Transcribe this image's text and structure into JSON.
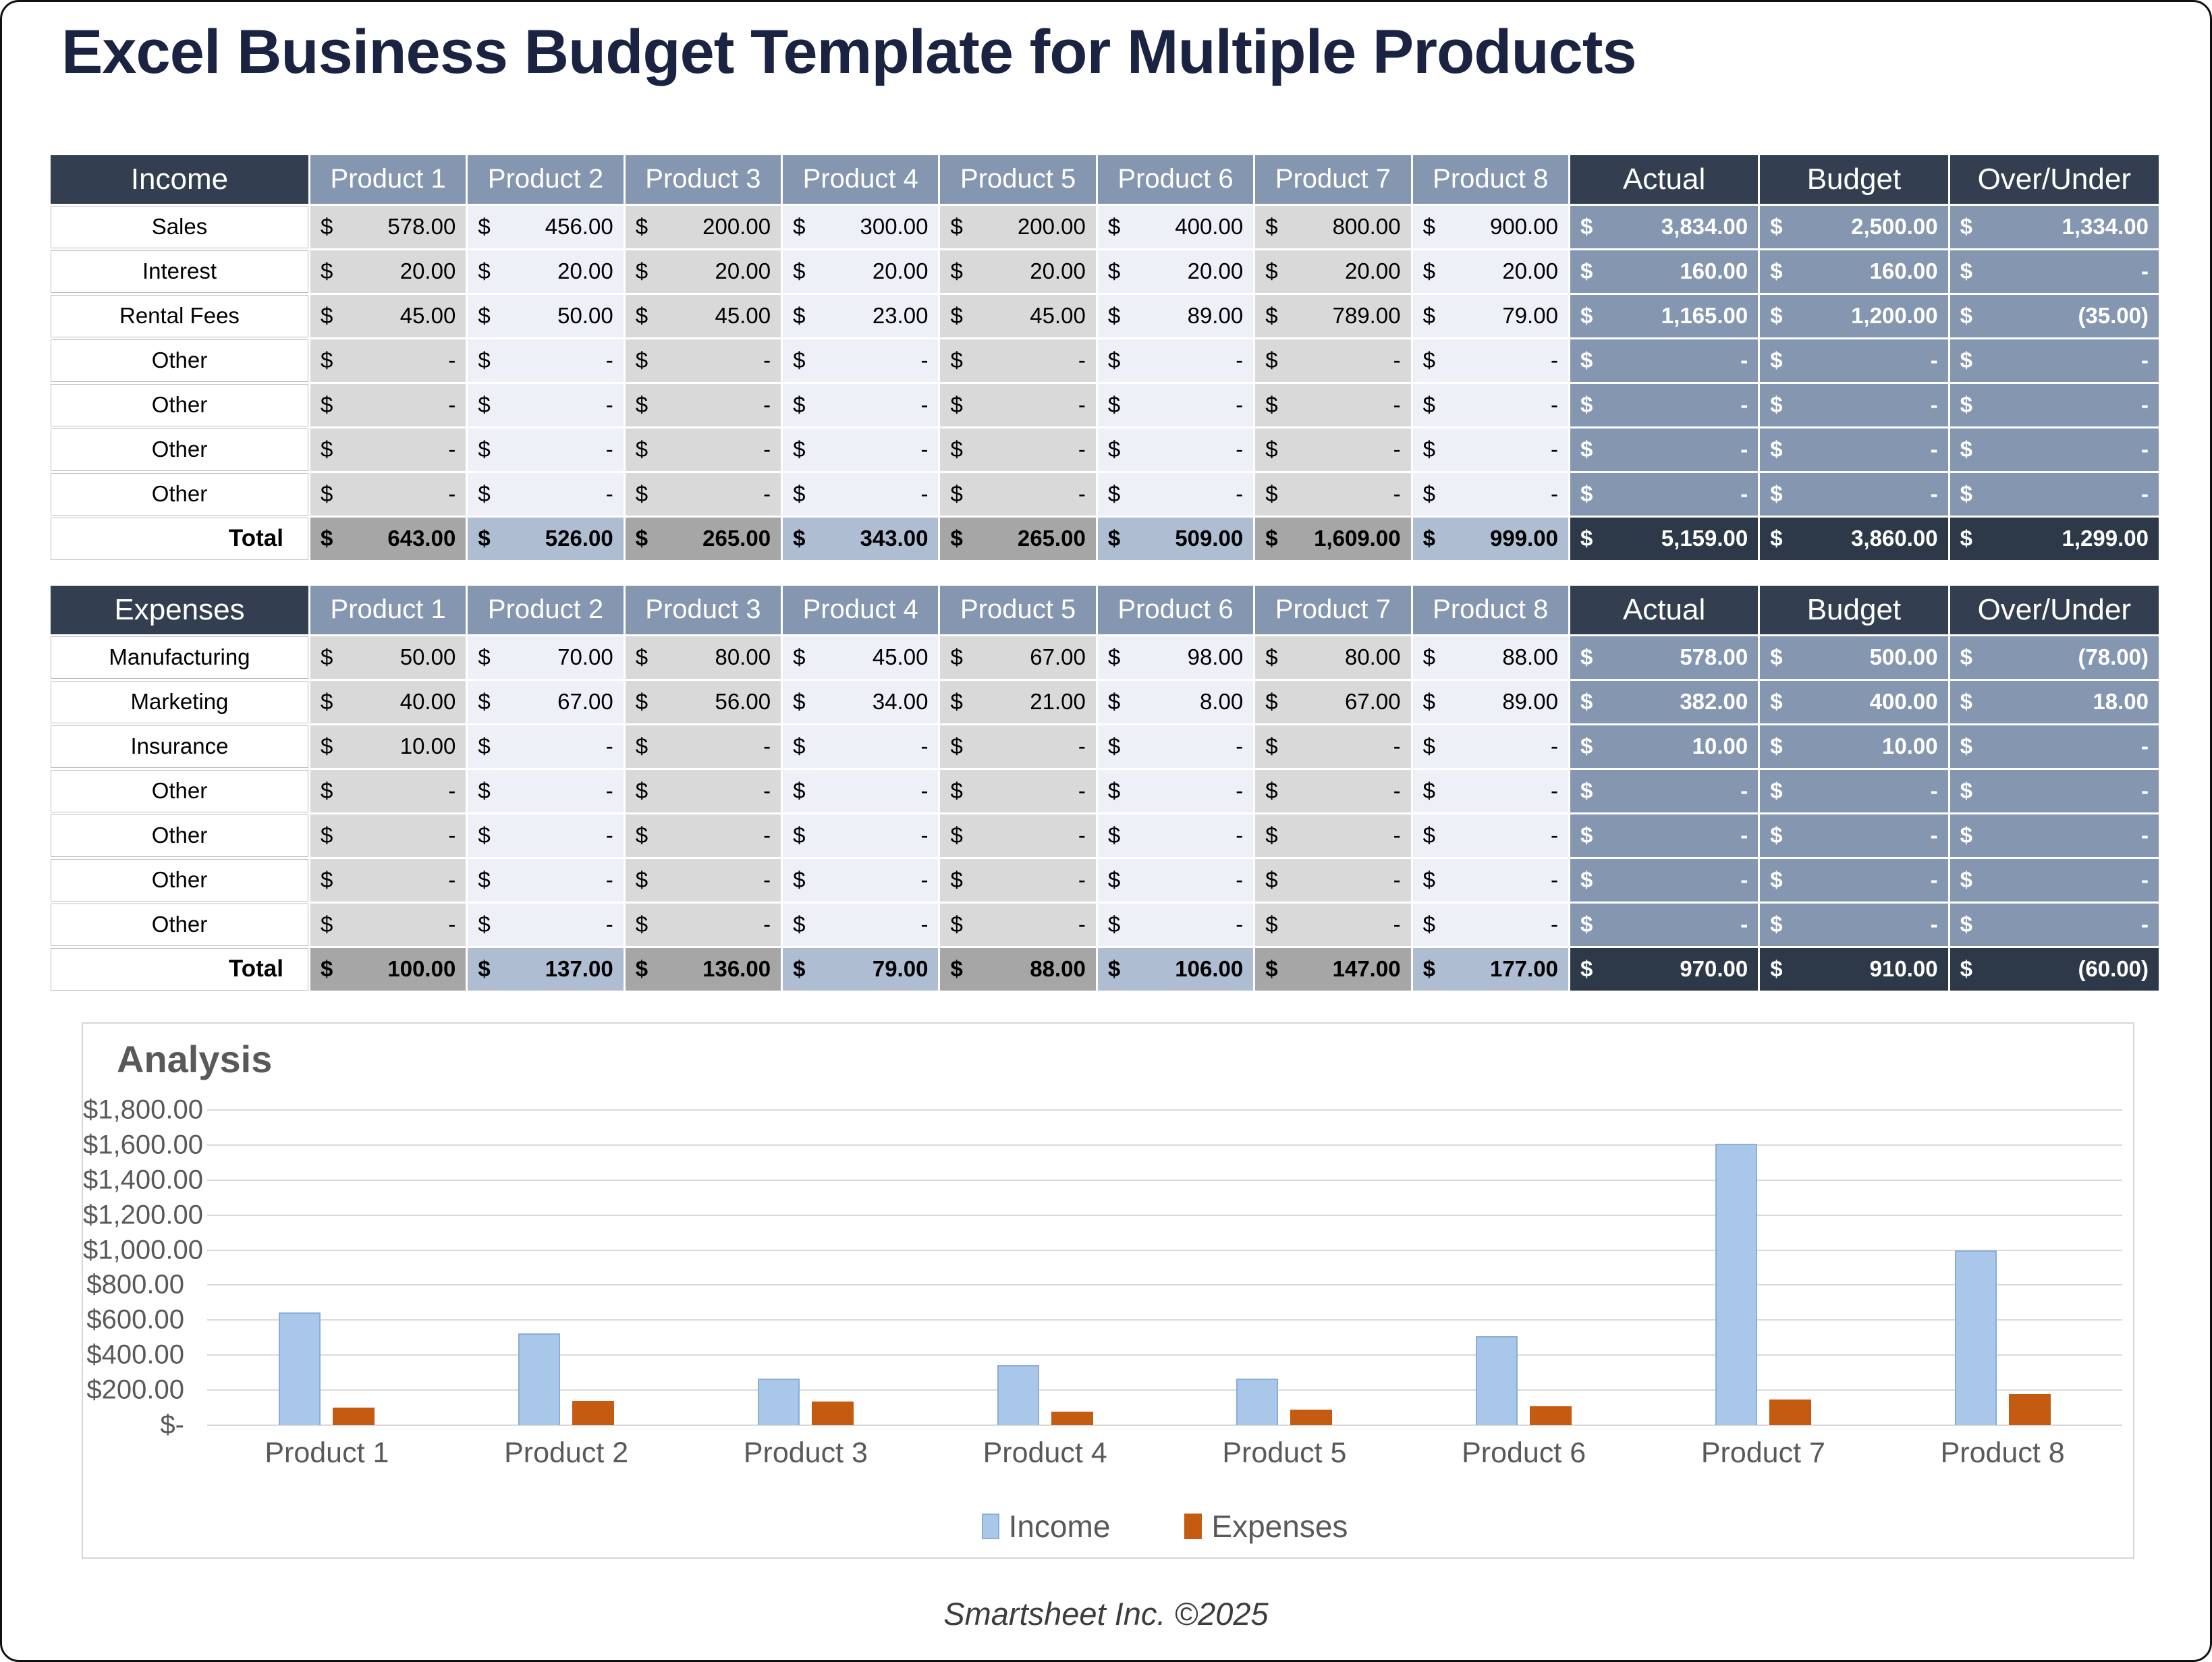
{
  "title": "Excel Business Budget Template for Multiple Products",
  "footer": "Smartsheet Inc. ©2025",
  "colors": {
    "title_navy": "#1b2342",
    "header_dark": "#333f50",
    "header_blue": "#8496b0",
    "cell_gray": "#d9d9d9",
    "cell_light": "#edf0f7",
    "total_gray": "#a6a6a6",
    "total_blue": "#afbdd3",
    "total_dark": "#2d3949",
    "income_bar": "#a9c7e9",
    "income_bar_border": "#8cacd9",
    "expenses_bar": "#c55a11"
  },
  "tables": [
    {
      "id": "income",
      "name": "Income",
      "product_headers": [
        "Product 1",
        "Product 2",
        "Product 3",
        "Product 4",
        "Product 5",
        "Product 6",
        "Product 7",
        "Product 8"
      ],
      "summary_headers": [
        "Actual",
        "Budget",
        "Over/Under"
      ],
      "rows": [
        {
          "label": "Sales",
          "values": [
            "578.00",
            "456.00",
            "200.00",
            "300.00",
            "200.00",
            "400.00",
            "800.00",
            "900.00"
          ],
          "actual": "3,834.00",
          "budget": "2,500.00",
          "over_under": "1,334.00"
        },
        {
          "label": "Interest",
          "values": [
            "20.00",
            "20.00",
            "20.00",
            "20.00",
            "20.00",
            "20.00",
            "20.00",
            "20.00"
          ],
          "actual": "160.00",
          "budget": "160.00",
          "over_under": "-"
        },
        {
          "label": "Rental Fees",
          "values": [
            "45.00",
            "50.00",
            "45.00",
            "23.00",
            "45.00",
            "89.00",
            "789.00",
            "79.00"
          ],
          "actual": "1,165.00",
          "budget": "1,200.00",
          "over_under": "(35.00)"
        },
        {
          "label": "Other",
          "values": [
            "-",
            "-",
            "-",
            "-",
            "-",
            "-",
            "-",
            "-"
          ],
          "actual": "-",
          "budget": "-",
          "over_under": "-"
        },
        {
          "label": "Other",
          "values": [
            "-",
            "-",
            "-",
            "-",
            "-",
            "-",
            "-",
            "-"
          ],
          "actual": "-",
          "budget": "-",
          "over_under": "-"
        },
        {
          "label": "Other",
          "values": [
            "-",
            "-",
            "-",
            "-",
            "-",
            "-",
            "-",
            "-"
          ],
          "actual": "-",
          "budget": "-",
          "over_under": "-"
        },
        {
          "label": "Other",
          "values": [
            "-",
            "-",
            "-",
            "-",
            "-",
            "-",
            "-",
            "-"
          ],
          "actual": "-",
          "budget": "-",
          "over_under": "-"
        }
      ],
      "total": {
        "label": "Total",
        "values": [
          "643.00",
          "526.00",
          "265.00",
          "343.00",
          "265.00",
          "509.00",
          "1,609.00",
          "999.00"
        ],
        "actual": "5,159.00",
        "budget": "3,860.00",
        "over_under": "1,299.00"
      }
    },
    {
      "id": "expenses",
      "name": "Expenses",
      "product_headers": [
        "Product 1",
        "Product 2",
        "Product 3",
        "Product 4",
        "Product 5",
        "Product 6",
        "Product 7",
        "Product 8"
      ],
      "summary_headers": [
        "Actual",
        "Budget",
        "Over/Under"
      ],
      "rows": [
        {
          "label": "Manufacturing",
          "values": [
            "50.00",
            "70.00",
            "80.00",
            "45.00",
            "67.00",
            "98.00",
            "80.00",
            "88.00"
          ],
          "actual": "578.00",
          "budget": "500.00",
          "over_under": "(78.00)"
        },
        {
          "label": "Marketing",
          "values": [
            "40.00",
            "67.00",
            "56.00",
            "34.00",
            "21.00",
            "8.00",
            "67.00",
            "89.00"
          ],
          "actual": "382.00",
          "budget": "400.00",
          "over_under": "18.00"
        },
        {
          "label": "Insurance",
          "values": [
            "10.00",
            "-",
            "-",
            "-",
            "-",
            "-",
            "-",
            "-"
          ],
          "actual": "10.00",
          "budget": "10.00",
          "over_under": "-"
        },
        {
          "label": "Other",
          "values": [
            "-",
            "-",
            "-",
            "-",
            "-",
            "-",
            "-",
            "-"
          ],
          "actual": "-",
          "budget": "-",
          "over_under": "-"
        },
        {
          "label": "Other",
          "values": [
            "-",
            "-",
            "-",
            "-",
            "-",
            "-",
            "-",
            "-"
          ],
          "actual": "-",
          "budget": "-",
          "over_under": "-"
        },
        {
          "label": "Other",
          "values": [
            "-",
            "-",
            "-",
            "-",
            "-",
            "-",
            "-",
            "-"
          ],
          "actual": "-",
          "budget": "-",
          "over_under": "-"
        },
        {
          "label": "Other",
          "values": [
            "-",
            "-",
            "-",
            "-",
            "-",
            "-",
            "-",
            "-"
          ],
          "actual": "-",
          "budget": "-",
          "over_under": "-"
        }
      ],
      "total": {
        "label": "Total",
        "values": [
          "100.00",
          "137.00",
          "136.00",
          "79.00",
          "88.00",
          "106.00",
          "147.00",
          "177.00"
        ],
        "actual": "970.00",
        "budget": "910.00",
        "over_under": "(60.00)"
      }
    }
  ],
  "chart_data": {
    "type": "bar",
    "title": "Analysis",
    "categories": [
      "Product 1",
      "Product 2",
      "Product 3",
      "Product 4",
      "Product 5",
      "Product 6",
      "Product 7",
      "Product 8"
    ],
    "series": [
      {
        "name": "Income",
        "values": [
          643,
          526,
          265,
          343,
          265,
          509,
          1609,
          999
        ],
        "fill": "#a9c7e9",
        "border": "#8cacd9"
      },
      {
        "name": "Expenses",
        "values": [
          100,
          137,
          136,
          79,
          88,
          106,
          147,
          177
        ],
        "fill": "#c55a11",
        "border": "#c55a11"
      }
    ],
    "xlabel": "",
    "ylabel": "",
    "ylim": [
      0,
      1800
    ],
    "ytick_step": 200,
    "ytick_labels": [
      "$1,800.00",
      "$1,600.00",
      "$1,400.00",
      "$1,200.00",
      "$1,000.00",
      "$800.00",
      "$600.00",
      "$400.00",
      "$200.00",
      "$-"
    ],
    "grid": true,
    "legend_position": "bottom"
  }
}
